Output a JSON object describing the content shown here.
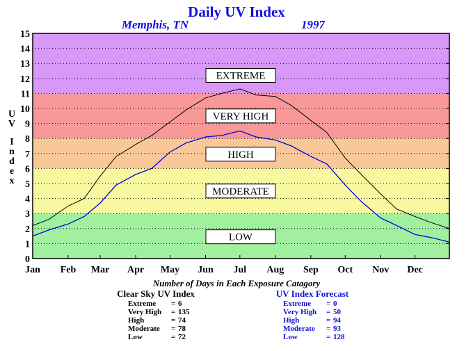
{
  "chart_data": {
    "type": "line",
    "title": "Daily UV Index",
    "location": "Memphis, TN",
    "year": "1997",
    "ylabel": "UV Index",
    "ylim": [
      0,
      15
    ],
    "y_ticks": [
      "0",
      "1",
      "2",
      "3",
      "4",
      "5",
      "6",
      "7",
      "8",
      "9",
      "10",
      "11",
      "12",
      "13",
      "14",
      "15"
    ],
    "x_ticks": [
      "Jan",
      "Feb",
      "Mar",
      "Apr",
      "May",
      "Jun",
      "Jul",
      "Aug",
      "Sep",
      "Oct",
      "Nov",
      "Dec"
    ],
    "grid": true,
    "bands": [
      {
        "label": "LOW",
        "from": 0,
        "to": 3,
        "color": "#a0f0a0"
      },
      {
        "label": "MODERATE",
        "from": 3,
        "to": 6,
        "color": "#f8f8a0"
      },
      {
        "label": "HIGH",
        "from": 6,
        "to": 8,
        "color": "#f8c898"
      },
      {
        "label": "VERY HIGH",
        "from": 8,
        "to": 11,
        "color": "#f89898"
      },
      {
        "label": "EXTREME",
        "from": 11,
        "to": 15,
        "color": "#d898f8"
      }
    ],
    "series": [
      {
        "name": "Clear Sky UV Index",
        "color": "#000000",
        "x": [
          1,
          15,
          32,
          46,
          60,
          74,
          91,
          105,
          121,
          135,
          152,
          166,
          182,
          196,
          213,
          227,
          244,
          258,
          274,
          288,
          305,
          319,
          335,
          349,
          365
        ],
        "values": [
          2.2,
          2.6,
          3.5,
          4.0,
          5.5,
          6.8,
          7.6,
          8.2,
          9.1,
          9.9,
          10.7,
          11.0,
          11.3,
          10.9,
          10.8,
          10.2,
          9.2,
          8.4,
          6.7,
          5.6,
          4.3,
          3.3,
          2.8,
          2.4,
          2.0
        ]
      },
      {
        "name": "UV Index Forecast",
        "color": "#0000e0",
        "x": [
          1,
          15,
          32,
          46,
          60,
          74,
          91,
          105,
          121,
          135,
          152,
          166,
          182,
          196,
          213,
          227,
          244,
          258,
          274,
          288,
          305,
          319,
          335,
          349,
          365
        ],
        "values": [
          1.5,
          1.9,
          2.3,
          2.8,
          3.7,
          4.9,
          5.6,
          6.0,
          7.1,
          7.7,
          8.1,
          8.2,
          8.5,
          8.1,
          7.9,
          7.5,
          6.8,
          6.3,
          4.9,
          3.8,
          2.7,
          2.2,
          1.6,
          1.4,
          1.1
        ]
      }
    ]
  },
  "summary": {
    "caption": "Number of Days in Each Exposure Catagory",
    "clear_sky": {
      "heading": "Clear Sky UV Index",
      "rows": [
        {
          "label": "Extreme",
          "sep": "=",
          "value": "6"
        },
        {
          "label": "Very High",
          "sep": "=",
          "value": "135"
        },
        {
          "label": "High",
          "sep": "=",
          "value": "74"
        },
        {
          "label": "Moderate",
          "sep": "=",
          "value": "78"
        },
        {
          "label": "Low",
          "sep": "=",
          "value": "72"
        }
      ]
    },
    "forecast": {
      "heading": "UV Index Forecast",
      "rows": [
        {
          "label": "Extreme",
          "sep": "=",
          "value": "0"
        },
        {
          "label": "Very High",
          "sep": "=",
          "value": "50"
        },
        {
          "label": "High",
          "sep": "=",
          "value": "94"
        },
        {
          "label": "Moderate",
          "sep": "=",
          "value": "93"
        },
        {
          "label": "Low",
          "sep": "=",
          "value": "128"
        }
      ]
    }
  }
}
